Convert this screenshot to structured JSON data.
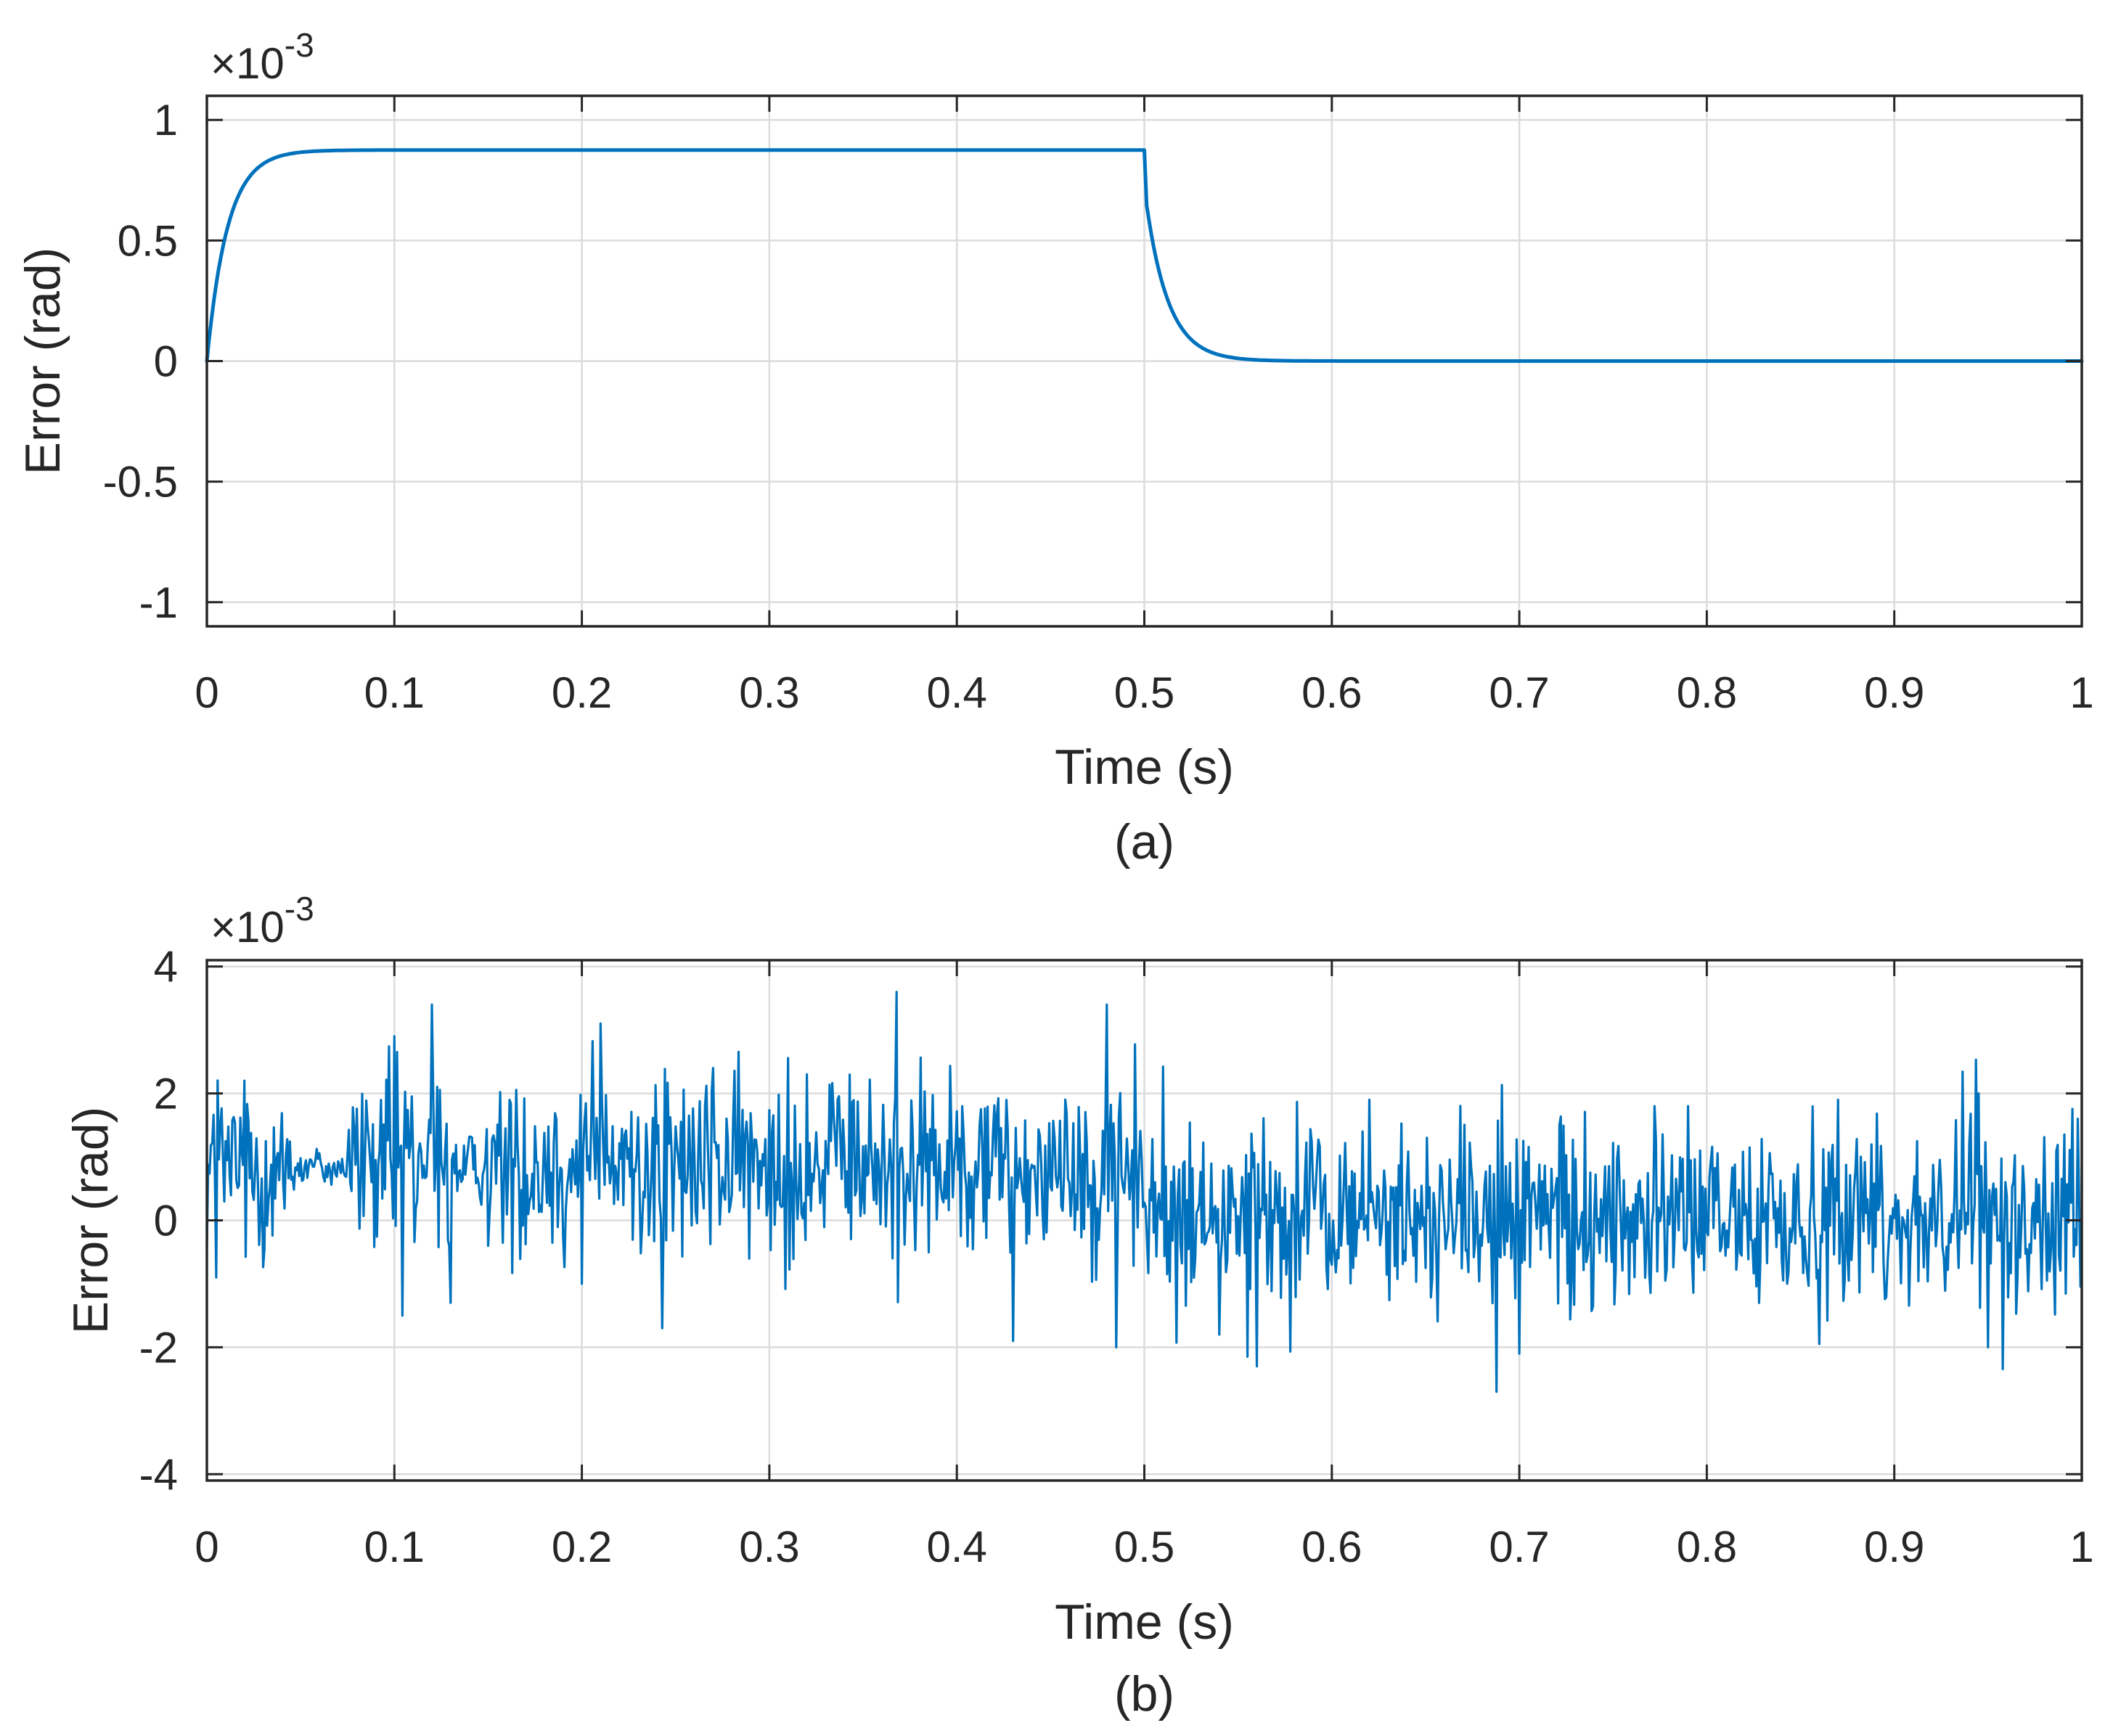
{
  "colors": {
    "series": "#0072BD",
    "grid": "#dcdcdc",
    "axis": "#262626"
  },
  "chart_data": [
    {
      "type": "line",
      "caption": "(a)",
      "xlabel": "Time (s)",
      "ylabel": "Error (rad)",
      "exponent_label": "×10",
      "exponent_power": "-3",
      "xlim": [
        0,
        1
      ],
      "ylim": [
        -1.1,
        1.1
      ],
      "grid": true,
      "x_ticks": [
        0,
        0.1,
        0.2,
        0.3,
        0.4,
        0.5,
        0.6,
        0.7,
        0.8,
        0.9,
        1
      ],
      "x_tick_labels": [
        "0",
        "0.1",
        "0.2",
        "0.3",
        "0.4",
        "0.5",
        "0.6",
        "0.7",
        "0.8",
        "0.9",
        "1"
      ],
      "y_ticks": [
        -1,
        -0.5,
        0,
        0.5,
        1
      ],
      "y_tick_labels": [
        "-1",
        "-0.5",
        "0",
        "0.5",
        "1"
      ],
      "series": [
        {
          "name": "error",
          "generator": "step",
          "rise_time_constant": 0.011,
          "fall_time_constant": 0.012,
          "step_off_time": 0.5,
          "plateau": 0.875,
          "x": [
            0,
            0.005,
            0.01,
            0.02,
            0.03,
            0.05,
            0.07,
            0.1,
            0.5,
            0.502,
            0.51,
            0.52,
            0.53,
            0.54,
            0.56,
            0.6,
            1
          ],
          "values": [
            0,
            0.3,
            0.5,
            0.7,
            0.8,
            0.86,
            0.873,
            0.875,
            0.875,
            0.72,
            0.42,
            0.21,
            0.09,
            0.035,
            0.005,
            0,
            0
          ]
        }
      ]
    },
    {
      "type": "line",
      "caption": "(b)",
      "xlabel": "Time (s)",
      "ylabel": "Error (rad)",
      "exponent_label": "×10",
      "exponent_power": "-3",
      "xlim": [
        0,
        1
      ],
      "ylim": [
        -4.1,
        4.1
      ],
      "grid": true,
      "x_ticks": [
        0,
        0.1,
        0.2,
        0.3,
        0.4,
        0.5,
        0.6,
        0.7,
        0.8,
        0.9,
        1
      ],
      "x_tick_labels": [
        "0",
        "0.1",
        "0.2",
        "0.3",
        "0.4",
        "0.5",
        "0.6",
        "0.7",
        "0.8",
        "0.9",
        "1"
      ],
      "y_ticks": [
        -4,
        -2,
        0,
        2,
        4
      ],
      "y_tick_labels": [
        "-4",
        "-2",
        "0",
        "2",
        "4"
      ],
      "series": [
        {
          "name": "error",
          "generator": "noise",
          "samples": 1400,
          "mean_before": 0.85,
          "mean_after": 0.05,
          "switch_time": 0.5,
          "noise_amplitude": 1.0,
          "peaks": [
            {
              "x": 0.005,
              "y": -0.9
            },
            {
              "x": 0.02,
              "y": 2.2
            },
            {
              "x": 0.1,
              "y": 2.9
            },
            {
              "x": 0.104,
              "y": -1.5
            },
            {
              "x": 0.12,
              "y": 3.4
            },
            {
              "x": 0.13,
              "y": -1.3
            },
            {
              "x": 0.2,
              "y": -1.0
            },
            {
              "x": 0.21,
              "y": 3.1
            },
            {
              "x": 0.243,
              "y": -1.7
            },
            {
              "x": 0.27,
              "y": 2.4
            },
            {
              "x": 0.32,
              "y": 2.3
            },
            {
              "x": 0.368,
              "y": 3.6
            },
            {
              "x": 0.43,
              "y": -1.9
            },
            {
              "x": 0.48,
              "y": 3.4
            },
            {
              "x": 0.485,
              "y": -2.0
            },
            {
              "x": 0.54,
              "y": -1.8
            },
            {
              "x": 0.56,
              "y": -2.3
            },
            {
              "x": 0.62,
              "y": 1.9
            },
            {
              "x": 0.688,
              "y": -2.7
            },
            {
              "x": 0.7,
              "y": -2.1
            },
            {
              "x": 0.79,
              "y": 1.8
            },
            {
              "x": 0.87,
              "y": 1.9
            },
            {
              "x": 0.945,
              "y": 2.0
            },
            {
              "x": 0.95,
              "y": -2.0
            },
            {
              "x": 0.998,
              "y": 1.6
            }
          ]
        }
      ]
    }
  ]
}
